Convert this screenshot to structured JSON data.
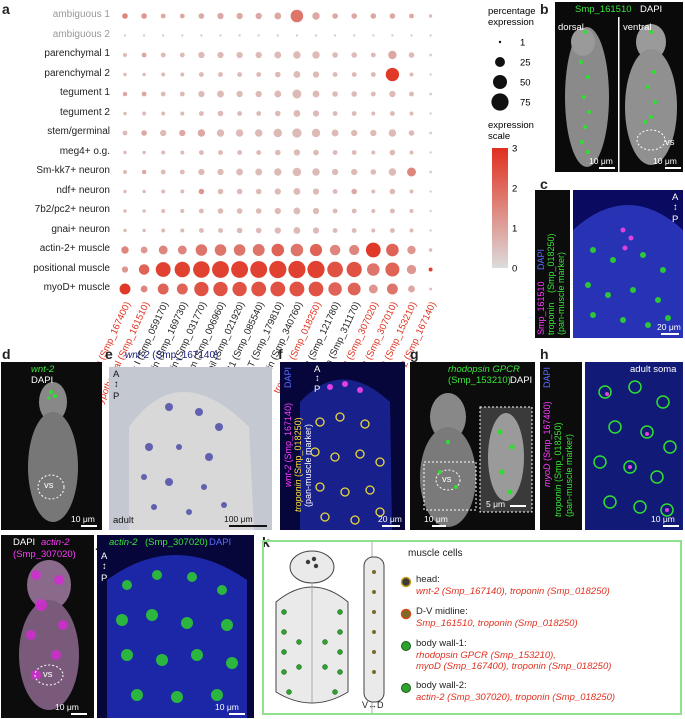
{
  "panels": {
    "a": "a",
    "b": "b",
    "c": "c",
    "d": "d",
    "e": "e",
    "f": "f",
    "g": "g",
    "h": "h",
    "i": "i",
    "j": "j",
    "k": "k"
  },
  "chart_data": {
    "type": "dotplot",
    "rows": [
      "ambiguous 1",
      "ambiguous 2",
      "parenchymal 1",
      "parenchymal 2",
      "tegument 1",
      "tegument 2",
      "stem/germinal",
      "meg4+ o.g.",
      "Sm-kk7+ neuron",
      "ndf+ neuron",
      "7b2/pc2+ neuron",
      "gnai+ neuron",
      "actin-2+ muscle",
      "positional muscle",
      "myoD+ muscle"
    ],
    "columns": [
      "myoD (Smp_167400)",
      "hypothetical (Smp_161510)",
      "troponin I (Smp_059170)",
      "fascin (Smp_169730)",
      "tropomyosin (Smp_031770)",
      "pdz and lim (Smp_006960)",
      "myosin tail (Smp_021920)",
      "myosin S1 (Smp_085540)",
      "troponin T (Smp_179810)",
      "tropomyosin (Smp_340760)",
      "troponin (Smp_018250)",
      "myosin light (Smp_121780)",
      "pdz and lim (Smp_311170)",
      "actin-2 (Smp_307020)",
      "actin-2 (Smp_307010)",
      "rhod. GPCR (Smp_153210)",
      "wnt-2 (Smp_167140)"
    ],
    "red_columns": [
      0,
      1,
      10,
      13,
      14,
      15,
      16
    ],
    "pct": [
      [
        8,
        8,
        6,
        6,
        8,
        10,
        10,
        10,
        12,
        40,
        14,
        8,
        8,
        8,
        8,
        6,
        3
      ],
      [
        1,
        1,
        1,
        1,
        1,
        1,
        1,
        1,
        1,
        1,
        1,
        1,
        1,
        1,
        1,
        1,
        0
      ],
      [
        4,
        6,
        6,
        6,
        10,
        10,
        10,
        10,
        12,
        14,
        14,
        8,
        8,
        6,
        18,
        8,
        2
      ],
      [
        3,
        3,
        4,
        4,
        6,
        6,
        6,
        6,
        8,
        12,
        10,
        6,
        6,
        6,
        45,
        4,
        1
      ],
      [
        5,
        6,
        6,
        6,
        10,
        12,
        10,
        10,
        12,
        20,
        12,
        8,
        8,
        6,
        10,
        6,
        2
      ],
      [
        3,
        4,
        4,
        4,
        6,
        8,
        6,
        6,
        8,
        12,
        10,
        6,
        6,
        4,
        6,
        4,
        1
      ],
      [
        6,
        8,
        10,
        10,
        14,
        14,
        14,
        14,
        18,
        22,
        18,
        12,
        10,
        10,
        14,
        8,
        2
      ],
      [
        3,
        3,
        4,
        4,
        6,
        6,
        6,
        6,
        8,
        10,
        8,
        6,
        6,
        4,
        8,
        4,
        1
      ],
      [
        4,
        5,
        6,
        6,
        10,
        10,
        12,
        12,
        14,
        18,
        14,
        10,
        10,
        8,
        14,
        20,
        2
      ],
      [
        3,
        3,
        4,
        4,
        8,
        8,
        8,
        8,
        10,
        12,
        10,
        6,
        8,
        4,
        8,
        4,
        1
      ],
      [
        3,
        3,
        4,
        4,
        6,
        8,
        8,
        8,
        10,
        12,
        10,
        6,
        6,
        4,
        6,
        4,
        1
      ],
      [
        3,
        3,
        4,
        4,
        6,
        6,
        8,
        8,
        10,
        12,
        10,
        6,
        6,
        4,
        6,
        4,
        1
      ],
      [
        14,
        12,
        20,
        20,
        34,
        34,
        34,
        36,
        40,
        40,
        38,
        28,
        26,
        55,
        40,
        18,
        3
      ],
      [
        10,
        28,
        56,
        60,
        70,
        72,
        72,
        72,
        75,
        75,
        75,
        62,
        58,
        40,
        50,
        22,
        4
      ],
      [
        30,
        12,
        30,
        30,
        52,
        52,
        52,
        55,
        56,
        56,
        55,
        46,
        42,
        20,
        30,
        12,
        2
      ]
    ],
    "expr": [
      [
        0.5,
        0.4,
        0.3,
        0.3,
        0.3,
        0.3,
        0.3,
        0.3,
        0.3,
        0.6,
        0.3,
        0.3,
        0.3,
        0.3,
        0.3,
        0.3,
        0.2
      ],
      [
        0.1,
        0.1,
        0.1,
        0.1,
        0.1,
        0.1,
        0.1,
        0.1,
        0.1,
        0.1,
        0.1,
        0.1,
        0.1,
        0.1,
        0.1,
        0.1,
        0.1
      ],
      [
        0.2,
        0.3,
        0.2,
        0.2,
        0.2,
        0.2,
        0.2,
        0.2,
        0.2,
        0.2,
        0.2,
        0.2,
        0.2,
        0.2,
        0.3,
        0.2,
        0.1
      ],
      [
        0.2,
        0.2,
        0.2,
        0.2,
        0.2,
        0.2,
        0.2,
        0.2,
        0.2,
        0.2,
        0.2,
        0.2,
        0.2,
        0.2,
        0.95,
        0.2,
        0.1
      ],
      [
        0.3,
        0.3,
        0.2,
        0.2,
        0.2,
        0.2,
        0.2,
        0.2,
        0.2,
        0.2,
        0.2,
        0.2,
        0.2,
        0.2,
        0.2,
        0.2,
        0.1
      ],
      [
        0.2,
        0.2,
        0.2,
        0.2,
        0.2,
        0.2,
        0.2,
        0.2,
        0.2,
        0.2,
        0.2,
        0.2,
        0.2,
        0.2,
        0.2,
        0.2,
        0.1
      ],
      [
        0.2,
        0.3,
        0.2,
        0.3,
        0.3,
        0.2,
        0.2,
        0.2,
        0.2,
        0.2,
        0.2,
        0.2,
        0.2,
        0.2,
        0.2,
        0.2,
        0.1
      ],
      [
        0.2,
        0.2,
        0.2,
        0.2,
        0.2,
        0.2,
        0.2,
        0.2,
        0.2,
        0.2,
        0.2,
        0.2,
        0.2,
        0.2,
        0.2,
        0.2,
        0.1
      ],
      [
        0.2,
        0.3,
        0.2,
        0.2,
        0.2,
        0.2,
        0.2,
        0.2,
        0.2,
        0.2,
        0.2,
        0.2,
        0.2,
        0.2,
        0.2,
        0.5,
        0.1
      ],
      [
        0.2,
        0.2,
        0.2,
        0.2,
        0.4,
        0.2,
        0.2,
        0.2,
        0.2,
        0.2,
        0.2,
        0.2,
        0.3,
        0.2,
        0.2,
        0.2,
        0.1
      ],
      [
        0.2,
        0.2,
        0.2,
        0.2,
        0.2,
        0.2,
        0.2,
        0.2,
        0.2,
        0.2,
        0.2,
        0.2,
        0.2,
        0.2,
        0.2,
        0.2,
        0.1
      ],
      [
        0.2,
        0.2,
        0.2,
        0.2,
        0.2,
        0.2,
        0.2,
        0.2,
        0.2,
        0.2,
        0.2,
        0.2,
        0.2,
        0.2,
        0.2,
        0.2,
        0.1
      ],
      [
        0.5,
        0.4,
        0.5,
        0.5,
        0.6,
        0.6,
        0.6,
        0.6,
        0.7,
        0.6,
        0.7,
        0.5,
        0.5,
        0.95,
        0.7,
        0.4,
        0.2
      ],
      [
        0.4,
        0.7,
        0.9,
        0.9,
        0.9,
        0.9,
        0.9,
        0.9,
        0.9,
        0.9,
        0.9,
        0.8,
        0.8,
        0.6,
        0.7,
        0.4,
        0.9
      ],
      [
        0.95,
        0.5,
        0.7,
        0.7,
        0.8,
        0.8,
        0.8,
        0.8,
        0.8,
        0.8,
        0.8,
        0.7,
        0.7,
        0.4,
        0.6,
        0.3,
        0.2
      ]
    ],
    "size_legend_title": "percentage expression",
    "size_legend": [
      1,
      25,
      50,
      75
    ],
    "color_legend_title": "expression scale",
    "color_legend_ticks": [
      0,
      1,
      2,
      3
    ],
    "colors": {
      "low": "#dcdcdc",
      "high": "#e0301e"
    }
  },
  "b": {
    "title_gene": "Smp_161510",
    "title_dapi": "DAPI",
    "dorsal": "dorsal",
    "ventral": "ventral",
    "vs": "vs",
    "scale1": "10 μm",
    "scale2": "10 μm"
  },
  "c": {
    "left_label_1": "Smp_161510",
    "left_label_2": "DAPI",
    "left_label_3": "troponin",
    "left_label_4": "(Smp_018250)",
    "left_label_5": "(pan-muscle marker)",
    "a": "A",
    "p": "P",
    "scale": "20 μm"
  },
  "d": {
    "gene": "wnt-2",
    "dapi": "DAPI",
    "vs": "vs",
    "scale": "10 μm"
  },
  "e": {
    "title_gene": "wnt-2",
    "title_id": "(Smp_167140)",
    "a": "A",
    "p": "P",
    "adult": "adult",
    "scale": "100 μm"
  },
  "f": {
    "dapi": "DAPI",
    "gene1": "wnt-2",
    "id1": "(Smp_167140)",
    "gene2": "troponin",
    "id2": "(Smp_018250)",
    "note": "(pan-muscle marker)",
    "a": "A",
    "p": "P",
    "scale": "20 μm"
  },
  "g": {
    "gene": "rhodopsin GPCR",
    "id": "(Smp_153210)",
    "dapi": "DAPI",
    "vs": "vs",
    "scale1": "10 μm",
    "scale2": "5 μm"
  },
  "h": {
    "dapi": "DAPI",
    "gene1": "myoD",
    "id1": "(Smp_167400)",
    "gene2": "troponin",
    "id2": "(Smp_018250)",
    "note": "(pan-muscle marker)",
    "soma": "adult soma",
    "scale": "10 μm"
  },
  "i": {
    "dapi": "DAPI",
    "gene": "actin-2",
    "id": "(Smp_307020)",
    "vs": "vs",
    "scale": "10 μm"
  },
  "j": {
    "gene": "actin-2",
    "id": "(Smp_307020)",
    "dapi": "DAPI",
    "a": "A",
    "p": "P",
    "scale": "10 μm"
  },
  "k": {
    "title": "muscle cells",
    "vd": "V↔D",
    "items": [
      {
        "head": "head:",
        "genes": "wnt-2 (Smp_167140), troponin (Smp_018250)"
      },
      {
        "head": "D-V midline:",
        "genes": "Smp_161510, troponin (Smp_018250)"
      },
      {
        "head": "body wall-1:",
        "genes": "rhodopsin GPCR (Smp_153210),",
        "genes2": "myoD (Smp_167400), troponin (Smp_018250)"
      },
      {
        "head": "body wall-2:",
        "genes": "actin-2 (Smp_307020), troponin (Smp_018250)"
      }
    ]
  }
}
